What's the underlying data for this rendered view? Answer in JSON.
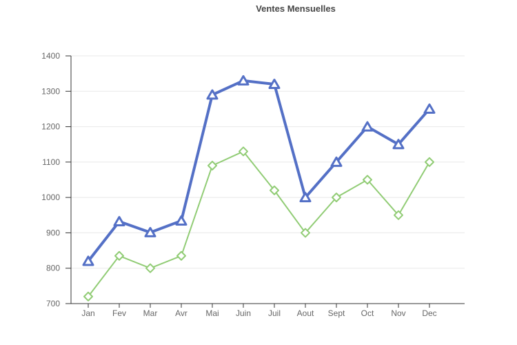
{
  "title": "Ventes Mensuelles",
  "colors": {
    "series_blue": "#5470C6",
    "series_green": "#91CC75",
    "grid_line": "#E8E8E8",
    "axis_line": "#333333",
    "tick_label": "#666666",
    "title_text": "#464646",
    "marker_fill": "#FFFFFF",
    "background": "#FFFFFF"
  },
  "chart_data": {
    "type": "line",
    "title": "Ventes Mensuelles",
    "categories": [
      "Jan",
      "Fev",
      "Mar",
      "Avr",
      "Mai",
      "Juin",
      "Juil",
      "Aout",
      "Sept",
      "Oct",
      "Nov",
      "Dec"
    ],
    "series": [
      {
        "name": "blue-triangle-series",
        "marker": "triangle",
        "color": "#5470C6",
        "line_width": 4,
        "values": [
          820,
          932,
          901,
          934,
          1290,
          1330,
          1320,
          1000,
          1100,
          1200,
          1150,
          1250
        ]
      },
      {
        "name": "green-diamond-series",
        "marker": "diamond",
        "color": "#91CC75",
        "line_width": 2,
        "values": [
          720,
          835,
          800,
          835,
          1090,
          1130,
          1020,
          900,
          1000,
          1050,
          950,
          1100
        ]
      }
    ],
    "xlabel": "",
    "ylabel": "",
    "ylim": [
      700,
      1400
    ],
    "yticks": [
      700,
      800,
      900,
      1000,
      1100,
      1200,
      1300,
      1400
    ],
    "grid": "horizontal",
    "legend": "none"
  }
}
